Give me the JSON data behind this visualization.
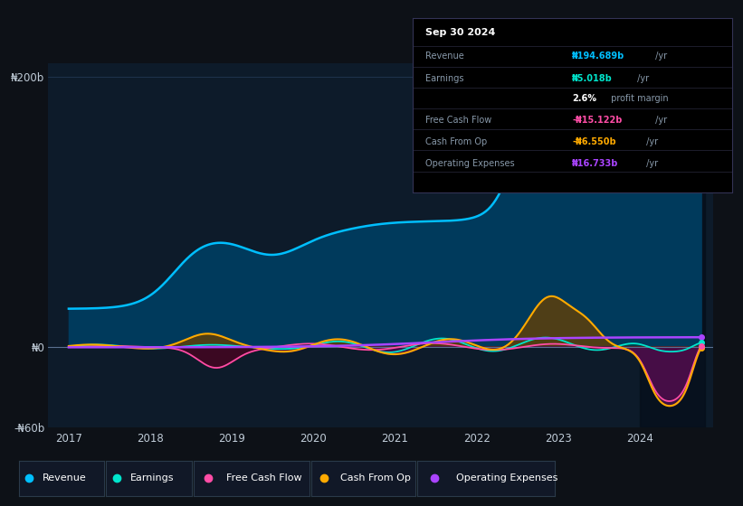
{
  "bg_color": "#0d1117",
  "plot_bg_color": "#0d1b2a",
  "grid_color": "#263d5a",
  "text_color": "#8899aa",
  "ylim": [
    -60,
    210
  ],
  "series": {
    "revenue": {
      "color": "#00bfff",
      "label": "Revenue"
    },
    "earnings": {
      "color": "#00e5cc",
      "label": "Earnings"
    },
    "free_cash_flow": {
      "color": "#ff4da6",
      "label": "Free Cash Flow"
    },
    "cash_from_op": {
      "color": "#ffaa00",
      "label": "Cash From Op"
    },
    "operating_expenses": {
      "color": "#aa44ff",
      "label": "Operating Expenses"
    }
  },
  "legend_items": [
    {
      "label": "Revenue",
      "color": "#00bfff"
    },
    {
      "label": "Earnings",
      "color": "#00e5cc"
    },
    {
      "label": "Free Cash Flow",
      "color": "#ff4da6"
    },
    {
      "label": "Cash From Op",
      "color": "#ffaa00"
    },
    {
      "label": "Operating Expenses",
      "color": "#aa44ff"
    }
  ]
}
